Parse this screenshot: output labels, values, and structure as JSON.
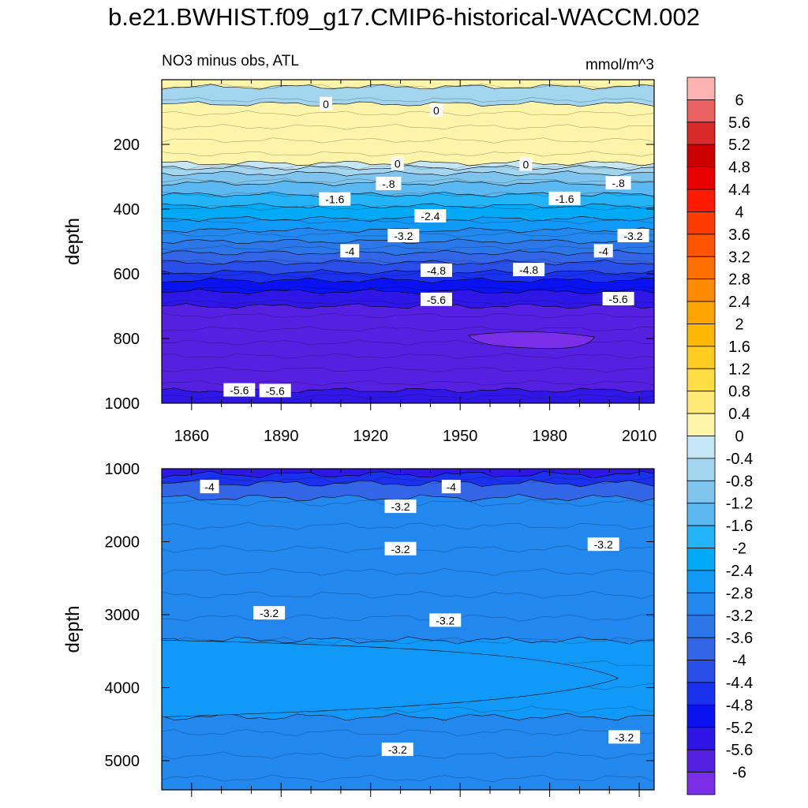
{
  "title": "b.e21.BWHIST.f09_g17.CMIP6-historical-WACCM.002",
  "colors": {
    "contour_line": "#000000",
    "label_bg": "#ffffff"
  },
  "chart_data": [
    {
      "type": "contour",
      "panel": "top",
      "subtitle_left": "NO3 minus obs, ATL",
      "subtitle_right": "mmol/m^3",
      "ylabel": "depth",
      "xlabel": "",
      "xlim": [
        1850,
        2015
      ],
      "ylim": [
        0,
        1000
      ],
      "y_inverted": true,
      "xticks": [
        1860,
        1890,
        1920,
        1950,
        1980,
        2010
      ],
      "yticks": [
        200,
        400,
        600,
        800,
        1000
      ],
      "layers": [
        {
          "top": 0,
          "bottom": 22,
          "value": 0.2
        },
        {
          "top": 22,
          "bottom": 75,
          "value": -0.6
        },
        {
          "top": 75,
          "bottom": 258,
          "value": 0.2
        },
        {
          "top": 258,
          "bottom": 272,
          "value": -0.2
        },
        {
          "top": 272,
          "bottom": 290,
          "value": -0.6
        },
        {
          "top": 290,
          "bottom": 320,
          "value": -1.0
        },
        {
          "top": 320,
          "bottom": 355,
          "value": -1.4
        },
        {
          "top": 355,
          "bottom": 390,
          "value": -1.8
        },
        {
          "top": 390,
          "bottom": 430,
          "value": -2.2
        },
        {
          "top": 430,
          "bottom": 465,
          "value": -2.6
        },
        {
          "top": 465,
          "bottom": 500,
          "value": -3.0
        },
        {
          "top": 500,
          "bottom": 535,
          "value": -3.4
        },
        {
          "top": 535,
          "bottom": 565,
          "value": -3.8
        },
        {
          "top": 565,
          "bottom": 595,
          "value": -4.2
        },
        {
          "top": 595,
          "bottom": 620,
          "value": -4.6
        },
        {
          "top": 620,
          "bottom": 655,
          "value": -5.0
        },
        {
          "top": 655,
          "bottom": 700,
          "value": -5.4
        },
        {
          "top": 700,
          "bottom": 960,
          "value": -5.8
        },
        {
          "top": 960,
          "bottom": 1000,
          "value": -5.4
        }
      ],
      "contour_labels": [
        {
          "text": "0",
          "x": 1942,
          "y": 95
        },
        {
          "text": "0",
          "x": 1905,
          "y": 75
        },
        {
          "text": "0",
          "x": 1929,
          "y": 260
        },
        {
          "text": "0",
          "x": 1972,
          "y": 262
        },
        {
          "text": "-.8",
          "x": 1926,
          "y": 322
        },
        {
          "text": "-.8",
          "x": 2003,
          "y": 320
        },
        {
          "text": "-1.6",
          "x": 1908,
          "y": 370
        },
        {
          "text": "-1.6",
          "x": 1985,
          "y": 368
        },
        {
          "text": "-2.4",
          "x": 1940,
          "y": 422
        },
        {
          "text": "-3.2",
          "x": 1931,
          "y": 483
        },
        {
          "text": "-3.2",
          "x": 2008,
          "y": 483
        },
        {
          "text": "-4",
          "x": 1913,
          "y": 530
        },
        {
          "text": "-4",
          "x": 1998,
          "y": 530
        },
        {
          "text": "-4.8",
          "x": 1942,
          "y": 590
        },
        {
          "text": "-4.8",
          "x": 1973,
          "y": 588
        },
        {
          "text": "-5.6",
          "x": 1942,
          "y": 680
        },
        {
          "text": "-5.6",
          "x": 2003,
          "y": 678
        },
        {
          "text": "-5.6",
          "x": 1876,
          "y": 960
        },
        {
          "text": "-5.6",
          "x": 1888,
          "y": 962
        }
      ]
    },
    {
      "type": "contour",
      "panel": "bottom",
      "subtitle_left": "",
      "subtitle_right": "",
      "ylabel": "depth",
      "xlabel": "",
      "xlim": [
        1850,
        2015
      ],
      "ylim": [
        1000,
        5400
      ],
      "y_inverted": true,
      "xticks": [
        1860,
        1890,
        1920,
        1950,
        1980,
        2010
      ],
      "yticks": [
        1000,
        2000,
        3000,
        4000,
        5000
      ],
      "layers": [
        {
          "top": 1000,
          "bottom": 1080,
          "value": -5.4
        },
        {
          "top": 1080,
          "bottom": 1200,
          "value": -4.6
        },
        {
          "top": 1200,
          "bottom": 1400,
          "value": -3.8
        },
        {
          "top": 1400,
          "bottom": 3350,
          "value": -3.0
        },
        {
          "top": 3350,
          "bottom": 4400,
          "value": -2.6
        },
        {
          "top": 4400,
          "bottom": 5400,
          "value": -3.0
        }
      ],
      "contour_labels": [
        {
          "text": "-4",
          "x": 1866,
          "y": 1250
        },
        {
          "text": "-4",
          "x": 1947,
          "y": 1250
        },
        {
          "text": "-3.2",
          "x": 1930,
          "y": 1520
        },
        {
          "text": "-3.2",
          "x": 1930,
          "y": 2100
        },
        {
          "text": "-3.2",
          "x": 1998,
          "y": 2040
        },
        {
          "text": "-3.2",
          "x": 1886,
          "y": 2980
        },
        {
          "text": "-3.2",
          "x": 1945,
          "y": 3080
        },
        {
          "text": "-3.2",
          "x": 1929,
          "y": 4850
        },
        {
          "text": "-3.2",
          "x": 2005,
          "y": 4680
        }
      ]
    }
  ],
  "colorbar": {
    "labels": [
      "6",
      "5.6",
      "5.2",
      "4.8",
      "4.4",
      "4",
      "3.6",
      "3.2",
      "2.8",
      "2.4",
      "2",
      "1.6",
      "1.2",
      "0.8",
      "0.4",
      "0",
      "-0.4",
      "-0.8",
      "-1.2",
      "-1.6",
      "-2",
      "-2.4",
      "-2.8",
      "-3.2",
      "-3.6",
      "-4",
      "-4.4",
      "-4.8",
      "-5.2",
      "-5.6",
      "-6"
    ],
    "colors": [
      "#ffb3b3",
      "#e86060",
      "#d92a2a",
      "#cc0000",
      "#e80000",
      "#ff1a00",
      "#ff3a00",
      "#ff5500",
      "#ff7000",
      "#ff8c00",
      "#ffa500",
      "#ffb800",
      "#ffcc22",
      "#ffdd44",
      "#ffe977",
      "#fff5aa",
      "#c5e6f5",
      "#a3d5ef",
      "#7fc4ec",
      "#5cb8f0",
      "#22b4f7",
      "#00aaf5",
      "#1199f7",
      "#2288ee",
      "#2b77e8",
      "#3366e6",
      "#2a4ee8",
      "#1a32ee",
      "#0a12f0",
      "#2e16e6",
      "#5520e0",
      "#7a2ee8"
    ]
  }
}
